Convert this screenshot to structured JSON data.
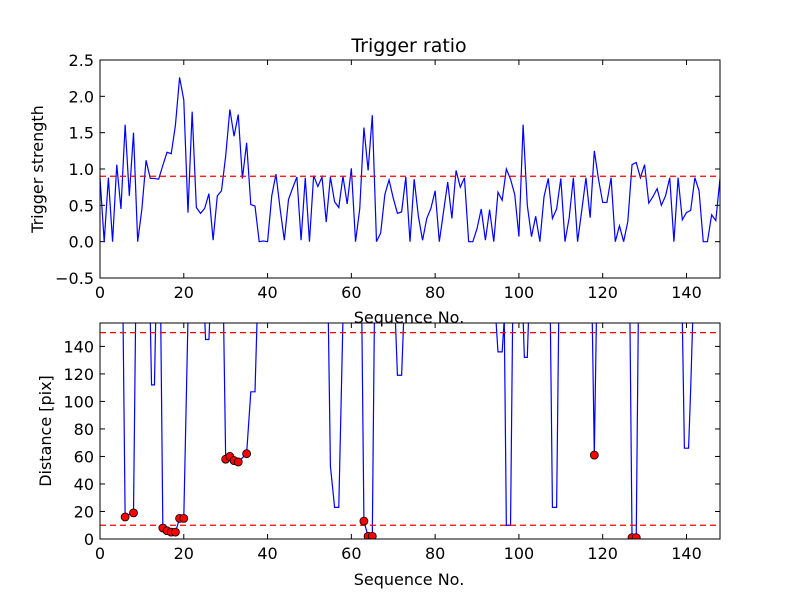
{
  "chart_data": [
    {
      "type": "line",
      "title": "Trigger ratio",
      "xlabel": "Sequence No.",
      "ylabel": "Trigger strength",
      "xlim": [
        0,
        148
      ],
      "ylim": [
        -0.5,
        2.5
      ],
      "xticks": [
        0,
        20,
        40,
        60,
        80,
        100,
        120,
        140
      ],
      "yticks": [
        -0.5,
        0.0,
        0.5,
        1.0,
        1.5,
        2.0,
        2.5
      ],
      "ytick_labels": [
        "−0.5",
        "0.0",
        "0.5",
        "1.0",
        "1.5",
        "2.0",
        "2.5"
      ],
      "grid": false,
      "line_color": "#0000ff",
      "reference_lines": [
        {
          "y": 0.9,
          "color": "#ff0000",
          "style": "dashed"
        }
      ],
      "series": [
        {
          "x": [
            0,
            1,
            2,
            3,
            4,
            5,
            6,
            7,
            8,
            9,
            10,
            11,
            12,
            13,
            14,
            15,
            16,
            17,
            18,
            19,
            20,
            21,
            22,
            23,
            24,
            25,
            26,
            27,
            28,
            29,
            30,
            31,
            32,
            33,
            34,
            35,
            36,
            37,
            38,
            39,
            40,
            41,
            42,
            43,
            44,
            45,
            46,
            47,
            48,
            49,
            50,
            51,
            52,
            53,
            54,
            55,
            56,
            57,
            58,
            59,
            60,
            61,
            62,
            63,
            64,
            65,
            66,
            67,
            68,
            69,
            70,
            71,
            72,
            73,
            74,
            75,
            76,
            77,
            78,
            79,
            80,
            81,
            82,
            83,
            84,
            85,
            86,
            87,
            88,
            89,
            90,
            91,
            92,
            93,
            94,
            95,
            96,
            97,
            98,
            99,
            100,
            101,
            102,
            103,
            104,
            105,
            106,
            107,
            108,
            109,
            110,
            111,
            112,
            113,
            114,
            115,
            116,
            117,
            118,
            119,
            120,
            121,
            122,
            123,
            124,
            125,
            126,
            127,
            128,
            129,
            130,
            131,
            132,
            133,
            134,
            135,
            136,
            137,
            138,
            139,
            140,
            141,
            142,
            143,
            144,
            145,
            146,
            147,
            148
          ],
          "values": [
            0.88,
            0.0,
            0.88,
            0.0,
            1.06,
            0.45,
            1.61,
            0.63,
            1.5,
            0.0,
            0.45,
            1.12,
            0.87,
            0.87,
            0.86,
            1.05,
            1.23,
            1.21,
            1.6,
            2.26,
            1.95,
            0.4,
            1.79,
            0.47,
            0.39,
            0.46,
            0.66,
            0.02,
            0.63,
            0.7,
            1.18,
            1.82,
            1.45,
            1.75,
            0.87,
            1.36,
            0.51,
            0.49,
            0.0,
            0.01,
            0.0,
            0.63,
            0.93,
            0.45,
            0.02,
            0.58,
            0.74,
            0.89,
            0.02,
            0.88,
            0.0,
            0.91,
            0.76,
            0.89,
            0.27,
            0.89,
            0.55,
            0.47,
            0.9,
            0.52,
            1.01,
            0.0,
            0.45,
            1.57,
            0.98,
            1.74,
            0.0,
            0.12,
            0.65,
            0.85,
            0.6,
            0.39,
            0.41,
            0.89,
            0.0,
            0.86,
            0.35,
            0.02,
            0.32,
            0.46,
            0.7,
            0.0,
            0.41,
            0.82,
            0.32,
            0.98,
            0.75,
            0.88,
            0.0,
            0.0,
            0.18,
            0.45,
            0.02,
            0.44,
            0.0,
            0.68,
            0.57,
            1.0,
            0.86,
            0.65,
            0.07,
            1.61,
            0.5,
            0.07,
            0.35,
            0.0,
            0.62,
            0.87,
            0.32,
            0.45,
            0.87,
            0.0,
            0.33,
            0.88,
            0.0,
            0.43,
            0.88,
            0.33,
            1.25,
            0.86,
            0.54,
            0.54,
            0.88,
            0.0,
            0.22,
            0.0,
            0.28,
            1.06,
            1.09,
            0.88,
            1.06,
            0.53,
            0.62,
            0.73,
            0.5,
            0.63,
            0.88,
            0.0,
            0.88,
            0.3,
            0.4,
            0.43,
            0.88,
            0.7,
            0.0,
            0.0,
            0.37,
            0.29,
            0.87
          ]
        }
      ]
    },
    {
      "type": "line",
      "title": "",
      "xlabel": "Sequence No.",
      "ylabel": "Distance [pix]",
      "xlim": [
        0,
        148
      ],
      "ylim": [
        0,
        157
      ],
      "xticks": [
        0,
        20,
        40,
        60,
        80,
        100,
        120,
        140
      ],
      "yticks": [
        0,
        20,
        40,
        60,
        80,
        100,
        120,
        140
      ],
      "grid": false,
      "line_color": "#0000ff",
      "marker_color": "#ff0000",
      "reference_lines": [
        {
          "y": 150,
          "color": "#ff0000",
          "style": "dashed"
        },
        {
          "y": 10,
          "color": "#ff0000",
          "style": "dashed"
        }
      ],
      "series": [
        {
          "x": [
            0,
            5.5,
            6,
            7,
            8,
            8.5,
            12,
            12.3,
            13,
            13.3,
            14.5,
            15,
            16,
            17,
            18,
            19,
            20,
            21,
            25,
            25.2,
            26,
            26.2,
            29.5,
            30,
            31,
            32,
            33,
            34,
            35,
            36,
            37,
            37.5,
            54.5,
            55,
            56,
            57,
            58,
            62.5,
            63,
            64,
            65,
            65.5,
            70.5,
            71,
            72,
            72.5,
            94.5,
            95,
            96,
            96.5,
            97,
            98,
            98.5,
            101,
            101.3,
            102,
            102.3,
            107.5,
            108,
            109,
            109.5,
            117.5,
            118,
            118.5,
            126.5,
            127,
            128,
            128.5,
            139,
            139.5,
            140.5,
            141,
            141.5,
            148
          ],
          "values": [
            160,
            160,
            16,
            18,
            19,
            160,
            160,
            112,
            112,
            160,
            160,
            8,
            6,
            5,
            5,
            15,
            15,
            160,
            160,
            145,
            145,
            160,
            160,
            58,
            60,
            57,
            56,
            59,
            62,
            107,
            107,
            160,
            160,
            53,
            23,
            23,
            160,
            160,
            13,
            2,
            2,
            160,
            160,
            119,
            119,
            160,
            160,
            136,
            136,
            160,
            10,
            10,
            160,
            160,
            132,
            132,
            160,
            160,
            23,
            23,
            160,
            160,
            61,
            160,
            160,
            1,
            1,
            160,
            160,
            66,
            66,
            109,
            160,
            160
          ]
        }
      ],
      "markers": {
        "x": [
          6,
          8,
          15,
          16,
          17,
          18,
          19,
          20,
          30,
          31,
          32,
          33,
          35,
          63,
          64,
          65,
          118,
          127,
          128
        ],
        "y": [
          16,
          19,
          8,
          6,
          5,
          5,
          15,
          15,
          58,
          60,
          57,
          56,
          62,
          13,
          2,
          2,
          61,
          1,
          1
        ]
      }
    }
  ]
}
